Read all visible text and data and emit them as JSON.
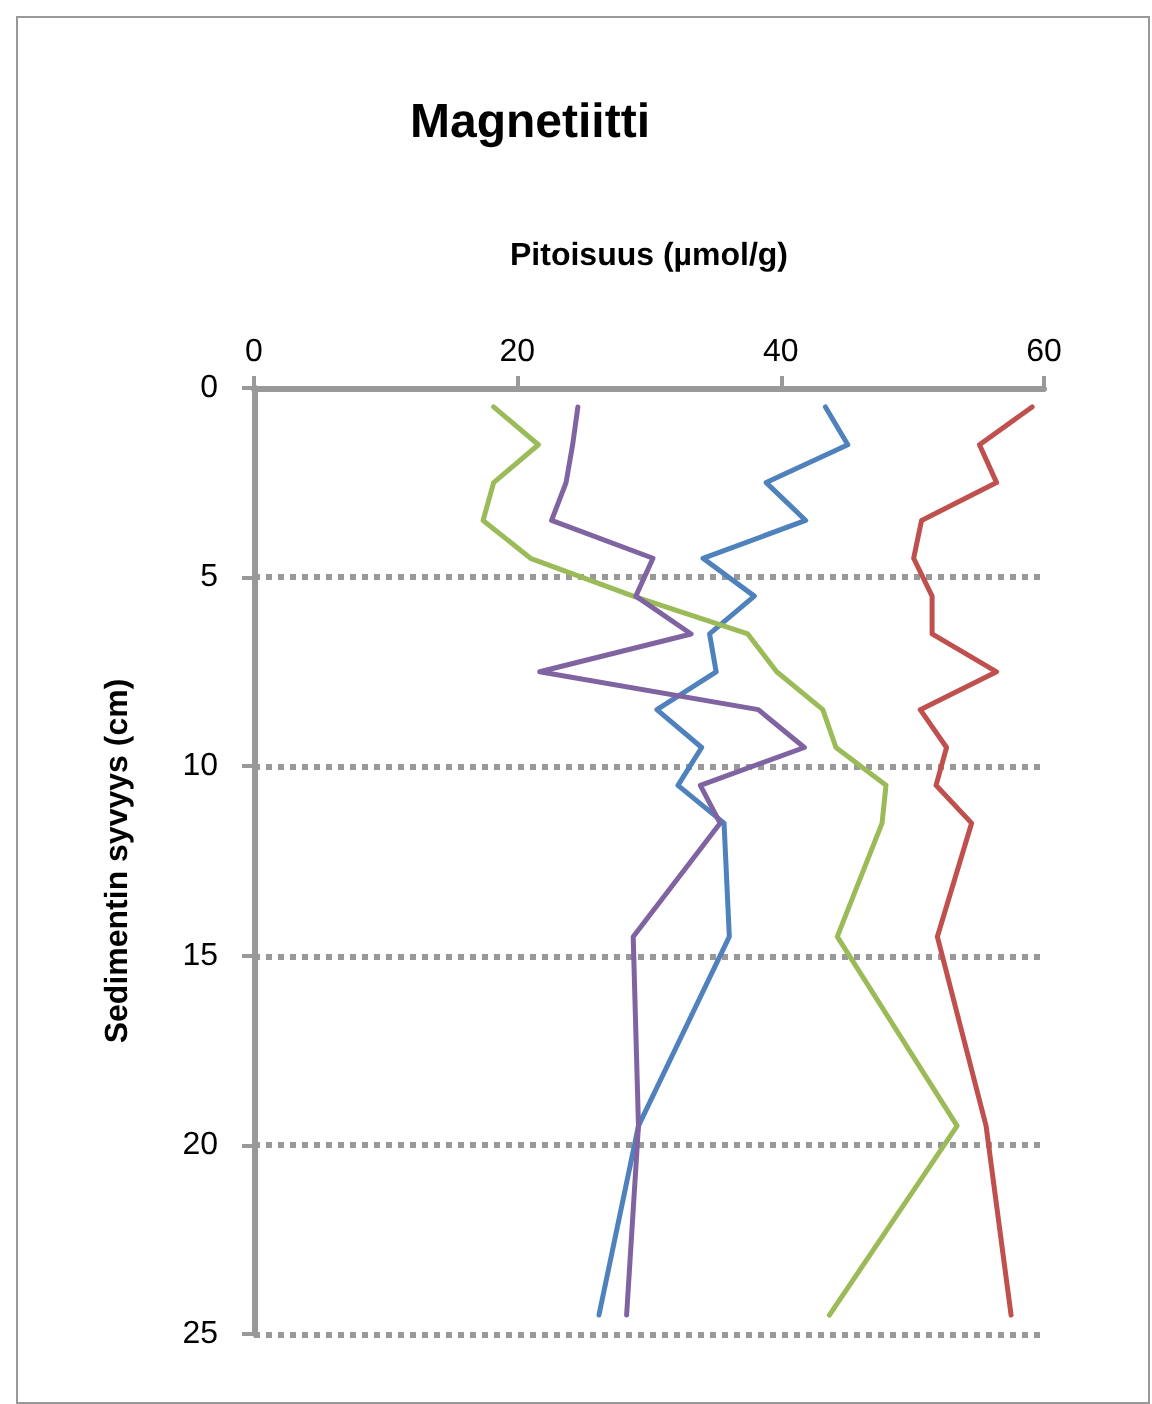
{
  "chart_data": {
    "type": "line",
    "title": "Magnetiitti",
    "xlabel": "Pitoisuus (µmol/g)",
    "ylabel": "Sedimentin syvyys (cm)",
    "xlim": [
      0,
      60
    ],
    "xticks": [
      0,
      20,
      40,
      60
    ],
    "ylim": [
      25,
      0
    ],
    "yticks": [
      0,
      5,
      10,
      15,
      20,
      25
    ],
    "grid": "y",
    "marker": "none",
    "line_style": "solid",
    "series": [
      {
        "color": "#4f81bd",
        "x": [
          43.4,
          45.1,
          38.9,
          41.9,
          34.1,
          38,
          34.6,
          35.1,
          30.6,
          34,
          32.2,
          35.7,
          36.1,
          29.2,
          26.2
        ],
        "values": [
          0.5,
          1.5,
          2.5,
          3.5,
          4.5,
          5.5,
          6.5,
          7.5,
          8.5,
          9.5,
          10.5,
          11.5,
          14.5,
          19.5,
          24.5
        ]
      },
      {
        "color": "#c0504d",
        "x": [
          59.1,
          55.1,
          56.4,
          50.7,
          50.1,
          51.5,
          51.5,
          56.4,
          50.6,
          52.6,
          51.8,
          54.5,
          51.9,
          55.6,
          57.5
        ],
        "values": [
          0.5,
          1.5,
          2.5,
          3.5,
          4.5,
          5.5,
          6.5,
          7.5,
          8.5,
          9.5,
          10.5,
          11.5,
          14.5,
          19.5,
          24.5
        ]
      },
      {
        "color": "#9bbb59",
        "x": [
          18.2,
          21.6,
          18.2,
          17.4,
          21,
          28.8,
          37.5,
          39.7,
          43.2,
          44.2,
          48,
          47.7,
          44.3,
          53.4,
          43.7
        ],
        "values": [
          0.5,
          1.5,
          2.5,
          3.5,
          4.5,
          5.5,
          6.5,
          7.5,
          8.5,
          9.5,
          10.5,
          11.5,
          14.5,
          19.5,
          24.5
        ]
      },
      {
        "color": "#8064a2",
        "x": [
          24.6,
          24.2,
          23.7,
          22.6,
          30.3,
          29,
          33.2,
          21.7,
          38.3,
          41.8,
          33.9,
          35.4,
          28.8,
          29.2,
          28.3
        ],
        "values": [
          0.5,
          1.5,
          2.5,
          3.5,
          4.5,
          5.5,
          6.5,
          7.5,
          8.5,
          9.5,
          10.5,
          11.5,
          14.5,
          19.5,
          24.5
        ]
      }
    ]
  }
}
